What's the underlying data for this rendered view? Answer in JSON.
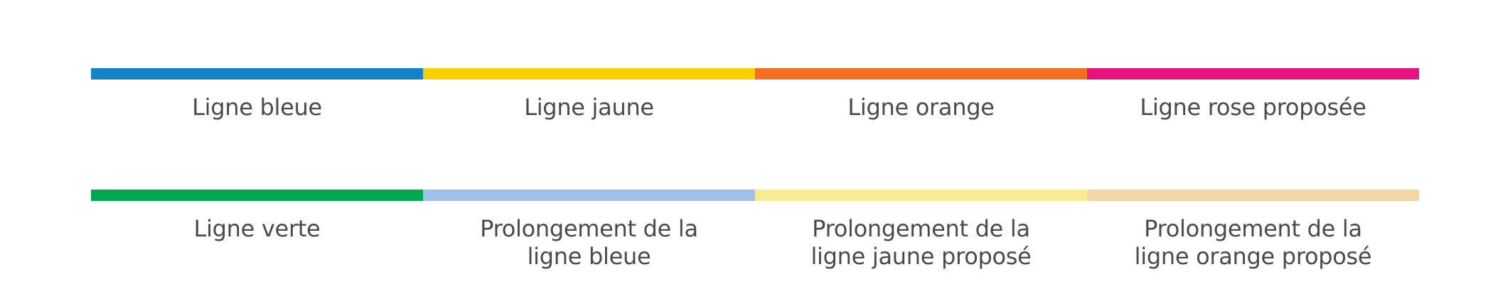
{
  "legend": {
    "rows": [
      {
        "items": [
          {
            "label": "Ligne bleue",
            "color": "#1181c8"
          },
          {
            "label": "Ligne jaune",
            "color": "#fcd000"
          },
          {
            "label": "Ligne orange",
            "color": "#f37021"
          },
          {
            "label": "Ligne rose proposée",
            "color": "#e5127d"
          }
        ]
      },
      {
        "items": [
          {
            "label": "Ligne verte",
            "color": "#00a650"
          },
          {
            "label": "Prolongement de la\nligne bleue",
            "color": "#a0c0ec"
          },
          {
            "label": "Prolongement de la\nligne jaune proposé",
            "color": "#f8ec92"
          },
          {
            "label": "Prolongement de la\nligne orange proposé",
            "color": "#f3d6a5"
          }
        ]
      }
    ]
  }
}
